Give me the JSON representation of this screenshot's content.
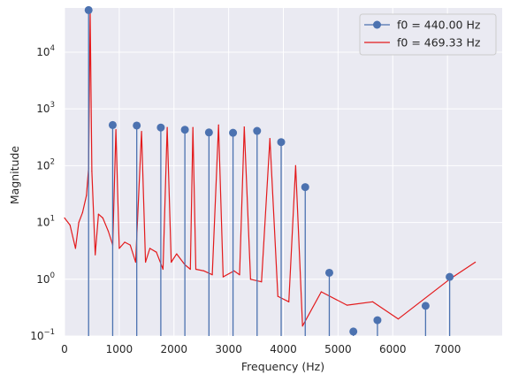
{
  "chart_data": {
    "type": "line",
    "title": "",
    "xlabel": "Frequency (Hz)",
    "ylabel": "Magnitude",
    "xlim": [
      0,
      8000
    ],
    "ylim": [
      0.1,
      60000
    ],
    "yscale": "log",
    "grid": true,
    "legend_position": "top-right",
    "x_ticks": [
      {
        "value": 0,
        "label": "0"
      },
      {
        "value": 1000,
        "label": "1000"
      },
      {
        "value": 2000,
        "label": "2000"
      },
      {
        "value": 3000,
        "label": "3000"
      },
      {
        "value": 4000,
        "label": "4000"
      },
      {
        "value": 5000,
        "label": "5000"
      },
      {
        "value": 6000,
        "label": "6000"
      },
      {
        "value": 7000,
        "label": "7000"
      }
    ],
    "y_ticks": [
      {
        "value": 0.1,
        "base": "10",
        "exp": "−1"
      },
      {
        "value": 1,
        "base": "10",
        "exp": "0"
      },
      {
        "value": 10,
        "base": "10",
        "exp": "1"
      },
      {
        "value": 100,
        "base": "10",
        "exp": "2"
      },
      {
        "value": 1000,
        "base": "10",
        "exp": "3"
      },
      {
        "value": 10000,
        "base": "10",
        "exp": "4"
      }
    ],
    "series": [
      {
        "name": "f0 = 440.00 Hz",
        "style": "stem",
        "color": "#4c72b0",
        "marker": "circle",
        "points": [
          {
            "x": 440,
            "y": 55000
          },
          {
            "x": 880,
            "y": 520
          },
          {
            "x": 1320,
            "y": 510
          },
          {
            "x": 1760,
            "y": 470
          },
          {
            "x": 2200,
            "y": 430
          },
          {
            "x": 2640,
            "y": 385
          },
          {
            "x": 3080,
            "y": 380
          },
          {
            "x": 3520,
            "y": 410
          },
          {
            "x": 3960,
            "y": 260
          },
          {
            "x": 4400,
            "y": 42
          },
          {
            "x": 4840,
            "y": 1.3
          },
          {
            "x": 5280,
            "y": 0.12
          },
          {
            "x": 5720,
            "y": 0.19
          },
          {
            "x": 6600,
            "y": 0.34
          },
          {
            "x": 7040,
            "y": 1.1
          }
        ]
      },
      {
        "name": "f0 = 469.33 Hz",
        "style": "line",
        "color": "#e31a1c",
        "points": [
          {
            "x": 0,
            "y": 12
          },
          {
            "x": 100,
            "y": 9
          },
          {
            "x": 200,
            "y": 3.5
          },
          {
            "x": 260,
            "y": 10
          },
          {
            "x": 330,
            "y": 15
          },
          {
            "x": 400,
            "y": 30
          },
          {
            "x": 440,
            "y": 90
          },
          {
            "x": 469,
            "y": 50000
          },
          {
            "x": 500,
            "y": 80
          },
          {
            "x": 560,
            "y": 2.7
          },
          {
            "x": 620,
            "y": 14
          },
          {
            "x": 700,
            "y": 12
          },
          {
            "x": 800,
            "y": 7
          },
          {
            "x": 880,
            "y": 4
          },
          {
            "x": 939,
            "y": 430
          },
          {
            "x": 1000,
            "y": 3.5
          },
          {
            "x": 1100,
            "y": 4.5
          },
          {
            "x": 1200,
            "y": 4
          },
          {
            "x": 1300,
            "y": 2
          },
          {
            "x": 1408,
            "y": 400
          },
          {
            "x": 1480,
            "y": 2
          },
          {
            "x": 1560,
            "y": 3.5
          },
          {
            "x": 1680,
            "y": 3
          },
          {
            "x": 1800,
            "y": 1.5
          },
          {
            "x": 1877,
            "y": 470
          },
          {
            "x": 1950,
            "y": 2
          },
          {
            "x": 2050,
            "y": 2.8
          },
          {
            "x": 2200,
            "y": 1.8
          },
          {
            "x": 2300,
            "y": 1.5
          },
          {
            "x": 2347,
            "y": 470
          },
          {
            "x": 2400,
            "y": 1.5
          },
          {
            "x": 2550,
            "y": 1.4
          },
          {
            "x": 2700,
            "y": 1.2
          },
          {
            "x": 2816,
            "y": 520
          },
          {
            "x": 2900,
            "y": 1.1
          },
          {
            "x": 3100,
            "y": 1.4
          },
          {
            "x": 3200,
            "y": 1.2
          },
          {
            "x": 3285,
            "y": 480
          },
          {
            "x": 3400,
            "y": 1.0
          },
          {
            "x": 3600,
            "y": 0.9
          },
          {
            "x": 3754,
            "y": 300
          },
          {
            "x": 3900,
            "y": 0.5
          },
          {
            "x": 4100,
            "y": 0.4
          },
          {
            "x": 4224,
            "y": 100
          },
          {
            "x": 4350,
            "y": 0.15
          },
          {
            "x": 4693,
            "y": 0.6
          },
          {
            "x": 5163,
            "y": 0.35
          },
          {
            "x": 5632,
            "y": 0.4
          },
          {
            "x": 6101,
            "y": 0.2
          },
          {
            "x": 7040,
            "y": 1.0
          },
          {
            "x": 7509,
            "y": 2.0
          }
        ]
      }
    ]
  }
}
